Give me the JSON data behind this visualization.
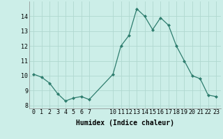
{
  "x": [
    0,
    1,
    2,
    3,
    4,
    5,
    6,
    7,
    10,
    11,
    12,
    13,
    14,
    15,
    16,
    17,
    18,
    19,
    20,
    21,
    22,
    23
  ],
  "y": [
    10.1,
    9.9,
    9.5,
    8.8,
    8.3,
    8.5,
    8.6,
    8.4,
    10.1,
    12.0,
    12.7,
    14.5,
    14.0,
    13.1,
    13.9,
    13.4,
    12.0,
    11.0,
    10.0,
    9.8,
    8.7,
    8.6
  ],
  "line_color": "#2e7d6e",
  "marker_color": "#2e7d6e",
  "bg_color": "#cceee8",
  "grid_color": "#b0d8d0",
  "xlabel": "Humidex (Indice chaleur)",
  "xlabel_fontsize": 7,
  "tick_fontsize": 6,
  "xlim": [
    -0.6,
    23.6
  ],
  "ylim": [
    7.8,
    15.0
  ],
  "yticks": [
    8,
    9,
    10,
    11,
    12,
    13,
    14
  ],
  "xticks": [
    0,
    1,
    2,
    3,
    4,
    5,
    6,
    7,
    10,
    11,
    12,
    13,
    14,
    15,
    16,
    17,
    18,
    19,
    20,
    21,
    22,
    23
  ]
}
